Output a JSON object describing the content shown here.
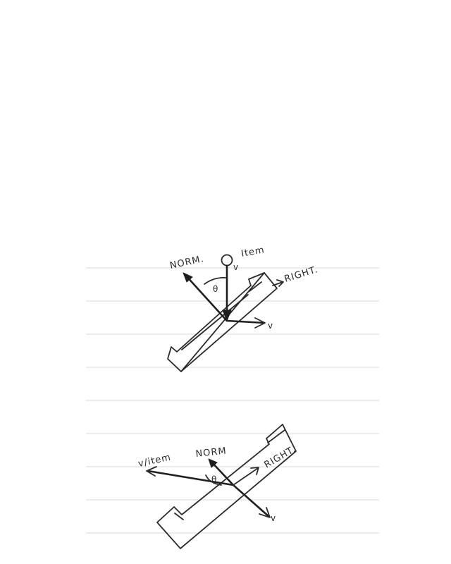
{
  "diagram_top": {
    "labels": {
      "norm": "NORM.",
      "v_item": "v",
      "item": "Item",
      "right": "RIGHT.",
      "theta": "θ",
      "v_out": "v"
    }
  },
  "diagram_bottom": {
    "labels": {
      "v_item": "v/item",
      "norm": "NORM",
      "right": "RIGHT.",
      "theta": "θ",
      "v_out": "v"
    }
  },
  "colors": {
    "ink": "#2b2b2b",
    "ruled_line": "#d9d9d9",
    "paper": "#ffffff"
  }
}
